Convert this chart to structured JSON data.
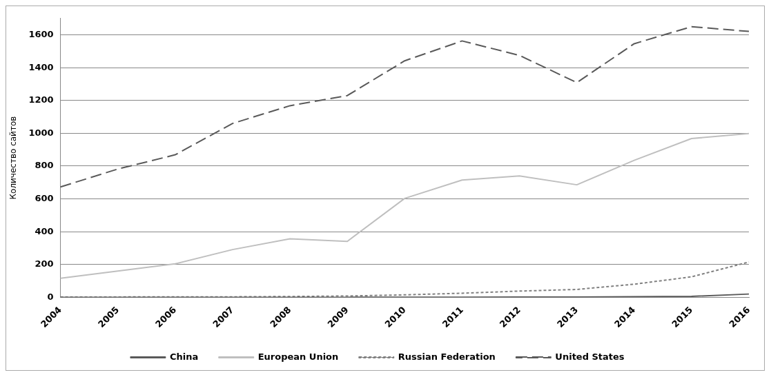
{
  "chart_data": {
    "type": "line",
    "ylabel": "Количество сайтов",
    "categories": [
      "2004",
      "2005",
      "2006",
      "2007",
      "2008",
      "2009",
      "2010",
      "2011",
      "2012",
      "2013",
      "2014",
      "2015",
      "2016"
    ],
    "ylim": [
      0,
      1700
    ],
    "yticks": [
      0,
      200,
      400,
      600,
      800,
      1000,
      1200,
      1400,
      1600
    ],
    "grid": "y",
    "legend": "bottom",
    "marker": "none",
    "series": [
      {
        "name": "China",
        "color": "#595959",
        "line_style": "solid",
        "values": [
          0,
          0,
          0,
          0,
          0,
          0,
          1,
          1,
          2,
          2,
          4,
          6,
          20
        ]
      },
      {
        "name": "European Union",
        "color": "#bfbfbf",
        "line_style": "solid",
        "values": [
          116,
          160,
          204,
          291,
          357,
          341,
          603,
          715,
          740,
          686,
          835,
          968,
          998
        ]
      },
      {
        "name": "Russian Federation",
        "color": "#808080",
        "line_style": "dashed",
        "values": [
          2,
          2,
          3,
          3,
          5,
          8,
          15,
          25,
          38,
          48,
          80,
          125,
          215
        ]
      },
      {
        "name": "United States",
        "color": "#595959",
        "line_style": "longdash",
        "values": [
          673,
          782,
          869,
          1060,
          1168,
          1230,
          1442,
          1563,
          1475,
          1309,
          1546,
          1650,
          1621
        ]
      }
    ]
  }
}
